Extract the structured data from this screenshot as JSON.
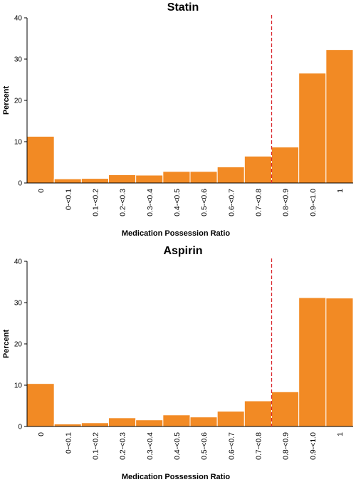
{
  "chart_data": [
    {
      "type": "bar",
      "title": "Statin",
      "xlabel": "Medication Possession Ratio",
      "ylabel": "Percent",
      "ylim": [
        0,
        40
      ],
      "yticks": [
        0,
        10,
        20,
        30,
        40
      ],
      "categories": [
        "0",
        "0-<0.1",
        "0.1-<0.2",
        "0.2-<0.3",
        "0.3-<0.4",
        "0.4-<0.5",
        "0.5-<0.6",
        "0.6-<0.7",
        "0.7-<0.8",
        "0.8-<0.9",
        "0.9-<1.0",
        "1"
      ],
      "values": [
        11.3,
        1.0,
        1.1,
        2.0,
        1.9,
        2.8,
        2.8,
        3.9,
        6.5,
        8.7,
        26.6,
        32.3
      ],
      "reference_line": {
        "x": 0.8,
        "style": "dashed",
        "color": "#d9262c"
      },
      "bar_color": "#f28a24",
      "grid": false
    },
    {
      "type": "bar",
      "title": "Aspirin",
      "xlabel": "Medication Possession Ratio",
      "ylabel": "Percent",
      "ylim": [
        0,
        40
      ],
      "yticks": [
        0,
        10,
        20,
        30,
        40
      ],
      "categories": [
        "0",
        "0-<0.1",
        "0.1-<0.2",
        "0.2-<0.3",
        "0.3-<0.4",
        "0.4-<0.5",
        "0.5-<0.6",
        "0.6-<0.7",
        "0.7-<0.8",
        "0.8-<0.9",
        "0.9-<1.0",
        "1"
      ],
      "values": [
        10.4,
        0.6,
        0.9,
        2.1,
        1.6,
        2.8,
        2.3,
        3.7,
        6.2,
        8.4,
        31.2,
        31.1
      ],
      "reference_line": {
        "x": 0.8,
        "style": "dashed",
        "color": "#d9262c"
      },
      "bar_color": "#f28a24",
      "grid": false
    }
  ]
}
